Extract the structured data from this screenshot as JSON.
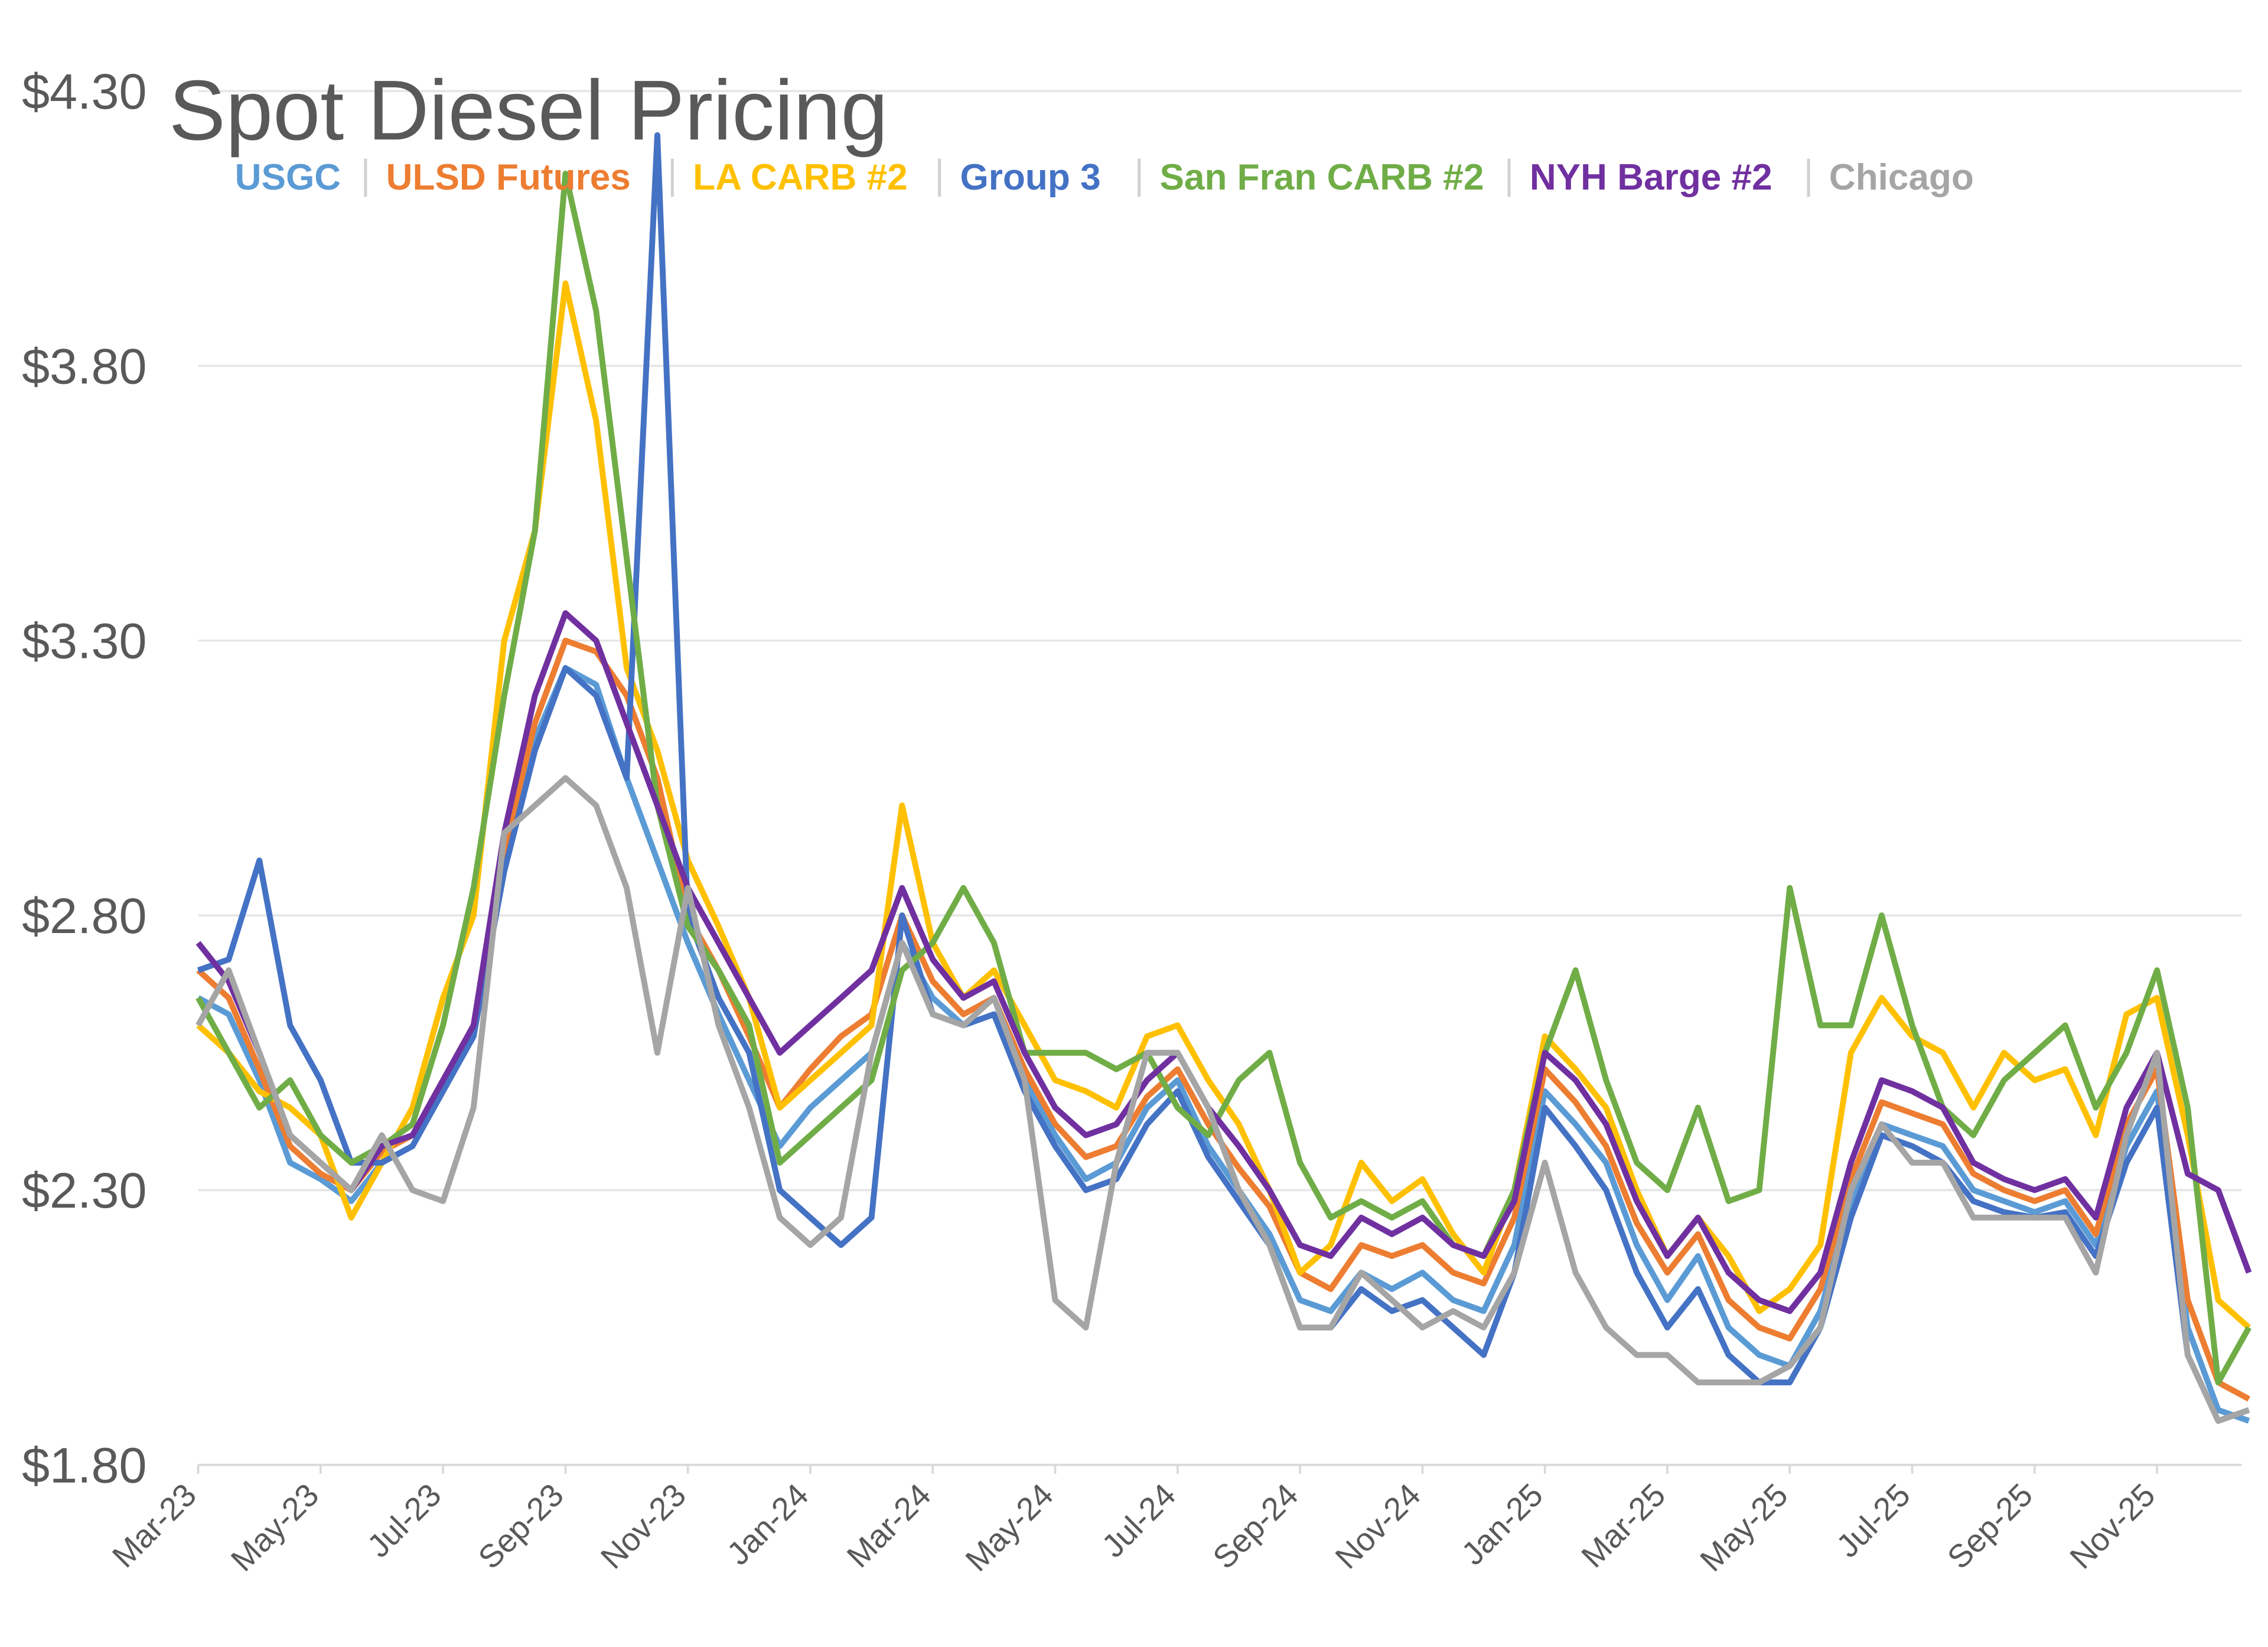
{
  "chart_data": {
    "type": "line",
    "title": "Spot Diesel Pricing",
    "categories": [
      "Mar-23",
      null,
      null,
      null,
      "May-23",
      null,
      null,
      null,
      "Jul-23",
      null,
      null,
      null,
      "Sep-23",
      null,
      null,
      null,
      "Nov-23",
      null,
      null,
      null,
      "Jan-24",
      null,
      null,
      null,
      "Mar-24",
      null,
      null,
      null,
      "May-24",
      null,
      null,
      null,
      "Jul-24",
      null,
      null,
      null,
      "Sep-24",
      null,
      null,
      null,
      "Nov-24",
      null,
      null,
      null,
      "Jan-25",
      null,
      null,
      null,
      "Mar-25",
      null,
      null,
      null,
      "May-25",
      null,
      null,
      null,
      "Jul-25",
      null,
      null,
      null,
      "Sep-25",
      null,
      null,
      null,
      "Nov-25",
      null,
      null,
      null
    ],
    "ylim": [
      1.8,
      4.3
    ],
    "yticks": [
      {
        "value": 1.8,
        "label": "$1.80"
      },
      {
        "value": 2.3,
        "label": "$2.30"
      },
      {
        "value": 2.8,
        "label": "$2.80"
      },
      {
        "value": 3.3,
        "label": "$3.30"
      },
      {
        "value": 3.8,
        "label": "$3.80"
      },
      {
        "value": 4.3,
        "label": "$4.30"
      }
    ],
    "grid": true,
    "series": [
      {
        "name": "USGC",
        "color": "#5b9bd5",
        "values": [
          2.65,
          2.62,
          2.5,
          2.35,
          2.32,
          2.28,
          2.35,
          2.38,
          2.48,
          2.58,
          2.9,
          3.12,
          3.25,
          3.22,
          3.05,
          2.9,
          2.75,
          2.62,
          2.5,
          2.38,
          2.45,
          2.5,
          2.55,
          2.75,
          2.65,
          2.6,
          2.62,
          2.5,
          2.4,
          2.32,
          2.35,
          2.45,
          2.5,
          2.38,
          2.3,
          2.22,
          2.1,
          2.08,
          2.15,
          2.12,
          2.15,
          2.1,
          2.08,
          2.2,
          2.48,
          2.42,
          2.35,
          2.2,
          2.1,
          2.18,
          2.05,
          2.0,
          1.98,
          2.08,
          2.28,
          2.42,
          2.4,
          2.38,
          2.3,
          2.28,
          2.26,
          2.28,
          2.2,
          2.38,
          2.48,
          2.05,
          1.9,
          1.88
        ]
      },
      {
        "name": "ULSD Futures",
        "color": "#ed7d31",
        "values": [
          2.7,
          2.65,
          2.52,
          2.38,
          2.33,
          2.3,
          2.37,
          2.4,
          2.5,
          2.6,
          2.92,
          3.15,
          3.3,
          3.28,
          3.2,
          3.05,
          2.8,
          2.7,
          2.58,
          2.45,
          2.52,
          2.58,
          2.62,
          2.8,
          2.68,
          2.62,
          2.65,
          2.52,
          2.42,
          2.36,
          2.38,
          2.47,
          2.52,
          2.42,
          2.34,
          2.27,
          2.15,
          2.12,
          2.2,
          2.18,
          2.2,
          2.15,
          2.13,
          2.25,
          2.52,
          2.46,
          2.38,
          2.24,
          2.15,
          2.22,
          2.1,
          2.05,
          2.03,
          2.12,
          2.32,
          2.46,
          2.44,
          2.42,
          2.33,
          2.3,
          2.28,
          2.3,
          2.22,
          2.42,
          2.52,
          2.1,
          1.95,
          1.92
        ]
      },
      {
        "name": "LA CARB #2",
        "color": "#ffc000",
        "values": [
          2.6,
          2.55,
          2.48,
          2.45,
          2.4,
          2.25,
          2.35,
          2.45,
          2.65,
          2.8,
          3.3,
          3.5,
          3.95,
          3.7,
          3.25,
          3.1,
          2.9,
          2.78,
          2.65,
          2.45,
          2.5,
          2.55,
          2.6,
          3.0,
          2.75,
          2.65,
          2.7,
          2.6,
          2.5,
          2.48,
          2.45,
          2.58,
          2.6,
          2.5,
          2.42,
          2.3,
          2.15,
          2.2,
          2.35,
          2.28,
          2.32,
          2.22,
          2.15,
          2.3,
          2.58,
          2.52,
          2.45,
          2.3,
          2.18,
          2.25,
          2.18,
          2.08,
          2.12,
          2.2,
          2.55,
          2.65,
          2.58,
          2.55,
          2.45,
          2.55,
          2.5,
          2.52,
          2.4,
          2.62,
          2.65,
          2.4,
          2.1,
          2.05
        ]
      },
      {
        "name": "Group 3",
        "color": "#4472c4",
        "values": [
          2.7,
          2.72,
          2.9,
          2.6,
          2.5,
          2.35,
          2.35,
          2.38,
          2.48,
          2.58,
          2.88,
          3.1,
          3.25,
          3.2,
          3.05,
          4.22,
          2.8,
          2.65,
          2.55,
          2.3,
          2.25,
          2.2,
          2.25,
          2.8,
          2.62,
          2.6,
          2.62,
          2.48,
          2.38,
          2.3,
          2.32,
          2.42,
          2.48,
          2.36,
          2.28,
          2.2,
          2.05,
          2.05,
          2.12,
          2.08,
          2.1,
          2.05,
          2.0,
          2.15,
          2.45,
          2.38,
          2.3,
          2.15,
          2.05,
          2.12,
          2.0,
          1.95,
          1.95,
          2.05,
          2.25,
          2.4,
          2.38,
          2.35,
          2.28,
          2.26,
          2.25,
          2.26,
          2.18,
          2.35,
          2.45,
          2.0,
          1.88,
          1.9
        ]
      },
      {
        "name": "San Fran CARB #2",
        "color": "#70ad47",
        "values": [
          2.65,
          2.55,
          2.45,
          2.5,
          2.4,
          2.35,
          2.38,
          2.42,
          2.6,
          2.85,
          3.2,
          3.5,
          4.15,
          3.9,
          3.45,
          3.0,
          2.78,
          2.7,
          2.6,
          2.35,
          2.4,
          2.45,
          2.5,
          2.7,
          2.75,
          2.85,
          2.75,
          2.55,
          2.55,
          2.55,
          2.52,
          2.55,
          2.45,
          2.4,
          2.5,
          2.55,
          2.35,
          2.25,
          2.28,
          2.25,
          2.28,
          2.2,
          2.18,
          2.3,
          2.55,
          2.7,
          2.5,
          2.35,
          2.3,
          2.45,
          2.28,
          2.3,
          2.85,
          2.6,
          2.6,
          2.8,
          2.6,
          2.45,
          2.4,
          2.5,
          2.55,
          2.6,
          2.45,
          2.55,
          2.7,
          2.45,
          1.95,
          2.05
        ]
      },
      {
        "name": "NYH Barge #2",
        "color": "#7030a0",
        "values": [
          2.75,
          2.68,
          2.55,
          2.4,
          2.35,
          2.3,
          2.38,
          2.4,
          2.5,
          2.6,
          2.95,
          3.2,
          3.35,
          3.3,
          3.15,
          3.0,
          2.85,
          2.75,
          2.65,
          2.55,
          2.6,
          2.65,
          2.7,
          2.85,
          2.72,
          2.65,
          2.68,
          2.55,
          2.45,
          2.4,
          2.42,
          2.5,
          2.55,
          2.45,
          2.38,
          2.3,
          2.2,
          2.18,
          2.25,
          2.22,
          2.25,
          2.2,
          2.18,
          2.28,
          2.55,
          2.5,
          2.42,
          2.28,
          2.18,
          2.25,
          2.15,
          2.1,
          2.08,
          2.15,
          2.35,
          2.5,
          2.48,
          2.45,
          2.35,
          2.32,
          2.3,
          2.32,
          2.25,
          2.45,
          2.55,
          2.33,
          2.3,
          2.15
        ]
      },
      {
        "name": "Chicago",
        "color": "#a5a5a5",
        "values": [
          2.6,
          2.7,
          2.55,
          2.4,
          2.35,
          2.3,
          2.4,
          2.3,
          2.28,
          2.45,
          2.95,
          3.0,
          3.05,
          3.0,
          2.85,
          2.55,
          2.85,
          2.6,
          2.45,
          2.25,
          2.2,
          2.25,
          2.55,
          2.75,
          2.62,
          2.6,
          2.65,
          2.5,
          2.1,
          2.05,
          2.35,
          2.55,
          2.55,
          2.45,
          2.3,
          2.2,
          2.05,
          2.05,
          2.15,
          2.1,
          2.05,
          2.08,
          2.05,
          2.15,
          2.35,
          2.15,
          2.05,
          2.0,
          2.0,
          1.95,
          1.95,
          1.95,
          1.98,
          2.05,
          2.3,
          2.42,
          2.35,
          2.35,
          2.25,
          2.25,
          2.25,
          2.25,
          2.15,
          2.4,
          2.55,
          2.0,
          1.88,
          1.9
        ]
      }
    ]
  }
}
